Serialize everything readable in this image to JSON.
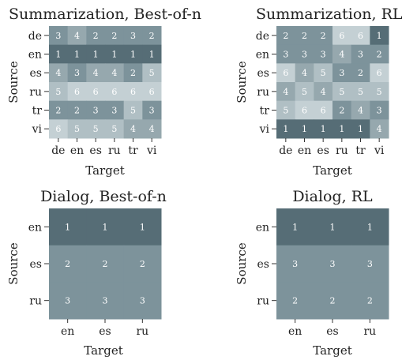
{
  "colors": {
    "1": "#566d76",
    "2": "#7d939b",
    "3": "#7d939b",
    "4": "#96a8ae",
    "5": "#b0bfc4",
    "6": "#c4d0d4"
  },
  "chart_data": [
    {
      "type": "heatmap",
      "title": "Summarization, Best-of-n",
      "xlabel": "Target",
      "ylabel": "Source",
      "x": [
        "de",
        "en",
        "es",
        "ru",
        "tr",
        "vi"
      ],
      "y": [
        "de",
        "en",
        "es",
        "ru",
        "tr",
        "vi"
      ],
      "values": [
        [
          3,
          4,
          2,
          2,
          3,
          2
        ],
        [
          1,
          1,
          1,
          1,
          1,
          1
        ],
        [
          4,
          3,
          4,
          4,
          2,
          5
        ],
        [
          5,
          6,
          6,
          6,
          6,
          6
        ],
        [
          2,
          2,
          3,
          3,
          5,
          3
        ],
        [
          6,
          5,
          5,
          5,
          4,
          4
        ]
      ]
    },
    {
      "type": "heatmap",
      "title": "Summarization, RL",
      "xlabel": "Target",
      "ylabel": "Source",
      "x": [
        "de",
        "en",
        "es",
        "ru",
        "tr",
        "vi"
      ],
      "y": [
        "de",
        "en",
        "es",
        "ru",
        "tr",
        "vi"
      ],
      "values": [
        [
          2,
          2,
          2,
          6,
          6,
          1
        ],
        [
          3,
          3,
          3,
          4,
          3,
          2
        ],
        [
          6,
          4,
          5,
          3,
          2,
          6
        ],
        [
          4,
          5,
          4,
          5,
          5,
          5
        ],
        [
          5,
          6,
          6,
          2,
          4,
          3
        ],
        [
          1,
          1,
          1,
          1,
          1,
          4
        ]
      ]
    },
    {
      "type": "heatmap",
      "title": "Dialog, Best-of-n",
      "xlabel": "Target",
      "ylabel": "Source",
      "x": [
        "en",
        "es",
        "ru"
      ],
      "y": [
        "en",
        "es",
        "ru"
      ],
      "values": [
        [
          1,
          1,
          1
        ],
        [
          2,
          2,
          2
        ],
        [
          3,
          3,
          3
        ]
      ]
    },
    {
      "type": "heatmap",
      "title": "Dialog, RL",
      "xlabel": "Target",
      "ylabel": "Source",
      "x": [
        "en",
        "es",
        "ru"
      ],
      "y": [
        "en",
        "es",
        "ru"
      ],
      "values": [
        [
          1,
          1,
          1
        ],
        [
          3,
          3,
          3
        ],
        [
          2,
          2,
          2
        ]
      ]
    }
  ]
}
